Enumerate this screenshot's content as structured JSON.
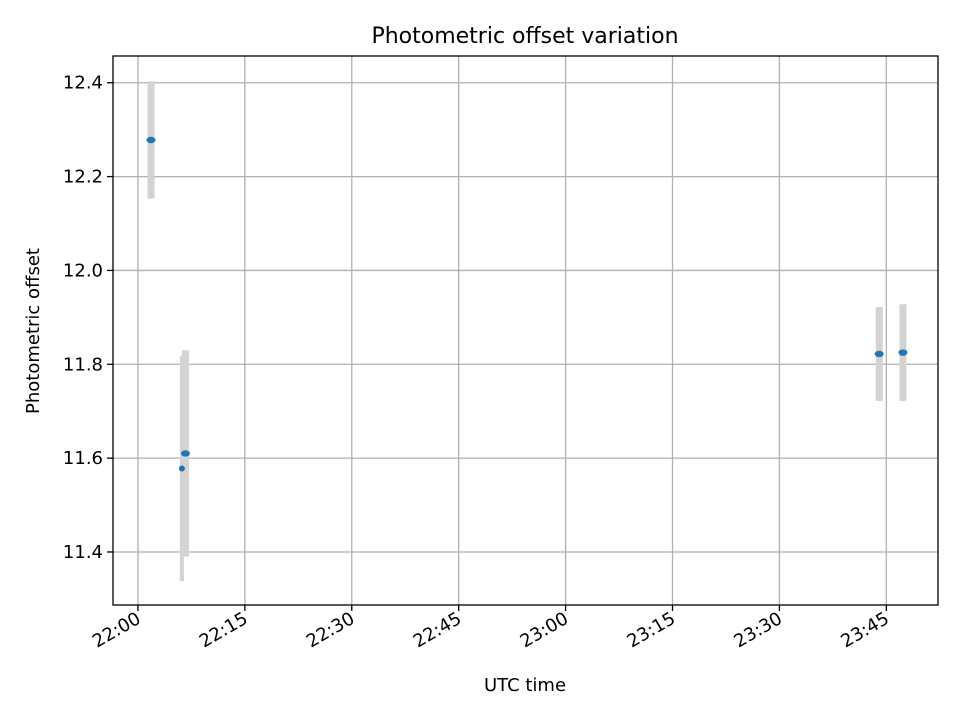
{
  "chart_data": {
    "type": "scatter",
    "title": "Photometric offset variation",
    "xlabel": "UTC time",
    "ylabel": "Photometric offset",
    "x_ticks": [
      "22:00",
      "22:15",
      "22:30",
      "22:45",
      "23:00",
      "23:15",
      "23:30",
      "23:45"
    ],
    "y_ticks": [
      "11.4",
      "11.6",
      "11.8",
      "12.0",
      "12.2",
      "12.4"
    ],
    "xlim": [
      "21:56:30",
      "23:52:15"
    ],
    "ylim": [
      11.287,
      12.457
    ],
    "grid": true,
    "colors": {
      "points": "#1f77b4",
      "errorbars": "#d3d3d3",
      "grid": "#b0b0b0"
    },
    "points": [
      {
        "x": "22:01:50",
        "y": 12.278,
        "yerr": 0.125,
        "width": "wide"
      },
      {
        "x": "22:06:10",
        "y": 11.578,
        "yerr": 0.24,
        "width": "narrow"
      },
      {
        "x": "22:06:40",
        "y": 11.61,
        "yerr": 0.22,
        "width": "wide"
      },
      {
        "x": "23:44:00",
        "y": 11.822,
        "yerr": 0.1,
        "width": "wide"
      },
      {
        "x": "23:47:20",
        "y": 11.825,
        "yerr": 0.103,
        "width": "wide"
      }
    ]
  }
}
